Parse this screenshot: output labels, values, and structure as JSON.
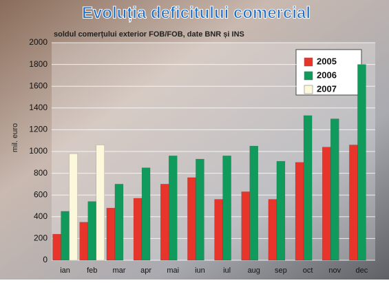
{
  "chart_data": {
    "type": "bar",
    "title": "Evoluția deficitului comercial",
    "subtitle": "soldul comerțului exterior FOB/FOB, date BNR și INS",
    "y_label": "mil. euro",
    "categories": [
      "ian",
      "feb",
      "mar",
      "apr",
      "mai",
      "iun",
      "iul",
      "aug",
      "sep",
      "oct",
      "nov",
      "dec"
    ],
    "series": [
      {
        "name": "2005",
        "color": "#e8352b",
        "values": [
          240,
          350,
          480,
          570,
          700,
          760,
          560,
          630,
          560,
          900,
          1040,
          1060
        ]
      },
      {
        "name": "2006",
        "color": "#109a5b",
        "values": [
          450,
          540,
          700,
          850,
          960,
          930,
          960,
          1050,
          910,
          1330,
          1300,
          1800
        ]
      },
      {
        "name": "2007",
        "color": "#fbf8dc",
        "values": [
          980,
          1060,
          null,
          null,
          null,
          null,
          null,
          null,
          null,
          null,
          null,
          null
        ]
      }
    ],
    "ylim": [
      0,
      2000
    ],
    "yticks": [
      0,
      200,
      400,
      600,
      800,
      1000,
      1200,
      1400,
      1600,
      1800,
      2000
    ],
    "grid": true,
    "legend": "top-right"
  }
}
